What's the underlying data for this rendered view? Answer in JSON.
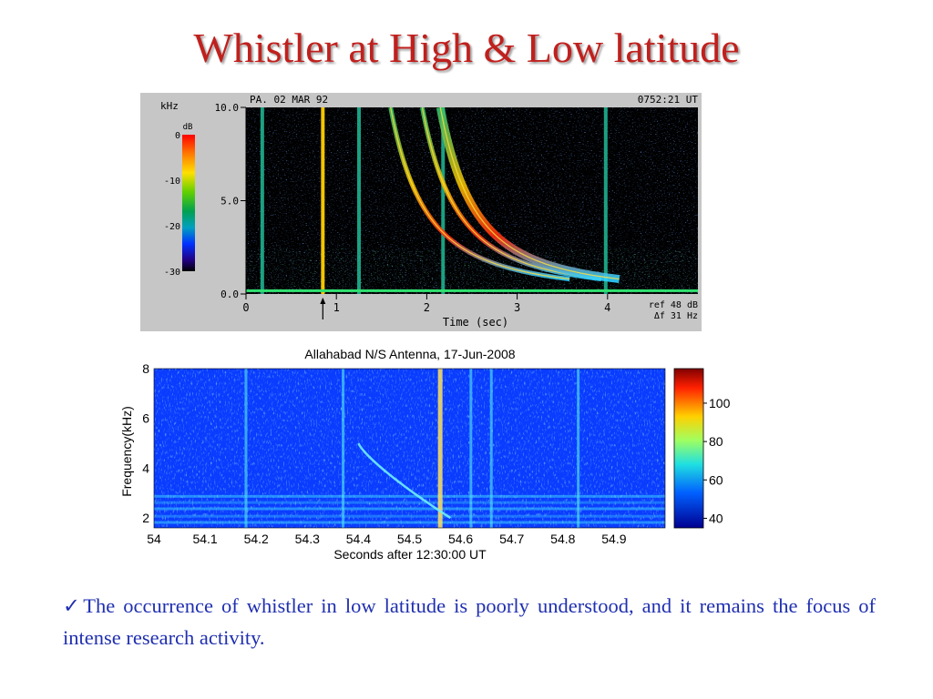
{
  "title": "Whistler at High & Low latitude",
  "caption": {
    "check": "✓",
    "text": "The occurrence of whistler in low latitude is poorly understood, and it remains the focus of intense research activity."
  },
  "chart_data": [
    {
      "type": "heatmap",
      "title": "",
      "header_left": "PA.   02 MAR 92",
      "header_right": "0752:21 UT",
      "ylabel": "kHz",
      "xlabel": "Time (sec)",
      "x_ticks": [
        "0",
        "1",
        "2",
        "3",
        "4"
      ],
      "y_ticks": [
        "0.0",
        "5.0",
        "10.0"
      ],
      "xlim": [
        0,
        5
      ],
      "ylim": [
        0,
        10
      ],
      "colorbar": {
        "label": "dB",
        "ticks": [
          "0",
          "-10",
          "-20",
          "-30"
        ],
        "range": [
          -30,
          0
        ]
      },
      "annotations": [
        "ref 48 dB",
        "Δf 31 Hz"
      ],
      "marker_time": 0.85,
      "vertical_lines_sec": [
        0.18,
        0.85,
        1.25,
        2.18,
        3.98
      ],
      "whistler_traces": [
        {
          "t0": 1.6,
          "f_start_khz": 10.0,
          "f_end_khz": 0.8
        },
        {
          "t0": 1.95,
          "f_start_khz": 10.0,
          "f_end_khz": 0.8
        },
        {
          "t0": 2.15,
          "f_start_khz": 10.0,
          "f_end_khz": 0.8
        }
      ]
    },
    {
      "type": "heatmap",
      "title": "Allahabad N/S Antenna, 17-Jun-2008",
      "xlabel": "Seconds after 12:30:00 UT",
      "ylabel": "Frequency(kHz)",
      "x_ticks": [
        "54",
        "54.1",
        "54.2",
        "54.3",
        "54.4",
        "54.5",
        "54.6",
        "54.7",
        "54.8",
        "54.9"
      ],
      "y_ticks": [
        "2",
        "4",
        "6",
        "8"
      ],
      "xlim": [
        54.0,
        55.0
      ],
      "ylim": [
        1.6,
        8.0
      ],
      "colorbar": {
        "ticks": [
          "40",
          "60",
          "80",
          "100"
        ],
        "range": [
          35,
          118
        ]
      },
      "whistler_trace": {
        "t_start": 54.4,
        "f_start_khz": 5.0,
        "t_end": 54.58,
        "f_end_khz": 2.0
      },
      "vertical_lines_sec": [
        54.18,
        54.37,
        54.56,
        54.62,
        54.66,
        54.83
      ]
    }
  ]
}
